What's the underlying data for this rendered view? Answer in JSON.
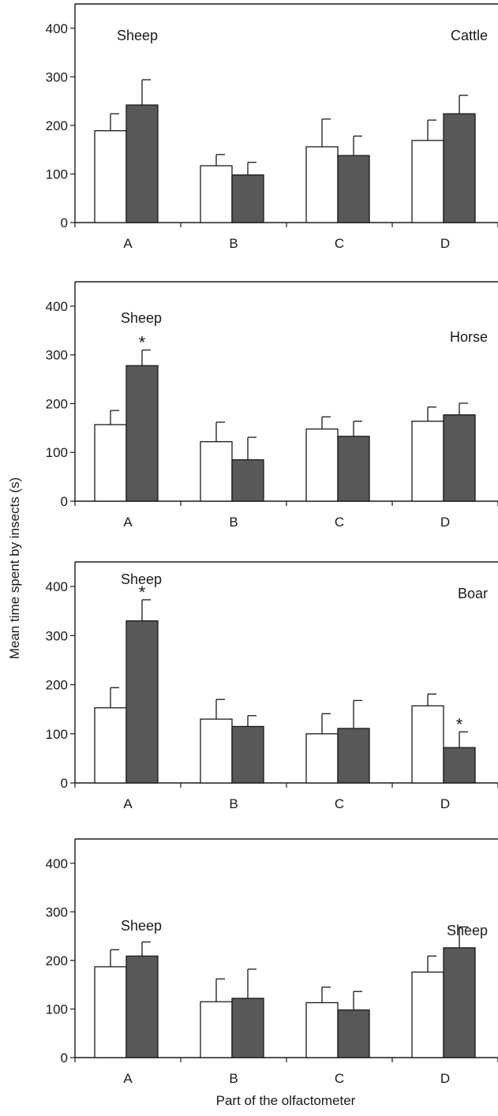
{
  "colors": {
    "control": "#ffffff",
    "treatment": "#58585a",
    "axis": "#1a1a1a"
  },
  "ylabel": "Mean time spent by insects (s)",
  "xlabel": "Part of the olfactometer",
  "chart_data": [
    {
      "type": "bar",
      "categories": [
        "A",
        "B",
        "C",
        "D"
      ],
      "ylim": [
        0,
        450
      ],
      "yticks": [
        0,
        100,
        200,
        300,
        400
      ],
      "left_label": "Sheep",
      "right_label": "Cattle",
      "series": [
        {
          "values": [
            189,
            117,
            156,
            169
          ],
          "errors": [
            35,
            23,
            57,
            42
          ],
          "stars": [
            "",
            "",
            "",
            ""
          ]
        },
        {
          "values": [
            242,
            98,
            138,
            224
          ],
          "errors": [
            52,
            26,
            40,
            38
          ],
          "stars": [
            "",
            "",
            "",
            ""
          ]
        }
      ]
    },
    {
      "type": "bar",
      "categories": [
        "A",
        "B",
        "C",
        "D"
      ],
      "ylim": [
        0,
        450
      ],
      "yticks": [
        0,
        100,
        200,
        300,
        400
      ],
      "left_label": "Sheep",
      "right_label": "Horse",
      "series": [
        {
          "values": [
            157,
            122,
            148,
            164
          ],
          "errors": [
            29,
            40,
            25,
            29
          ],
          "stars": [
            "",
            "",
            "",
            ""
          ]
        },
        {
          "values": [
            278,
            85,
            133,
            177
          ],
          "errors": [
            32,
            46,
            31,
            24
          ],
          "stars": [
            "*",
            "",
            "",
            ""
          ]
        }
      ]
    },
    {
      "type": "bar",
      "categories": [
        "A",
        "B",
        "C",
        "D"
      ],
      "ylim": [
        0,
        450
      ],
      "yticks": [
        0,
        100,
        200,
        300,
        400
      ],
      "left_label": "Sheep",
      "right_label": "Boar",
      "series": [
        {
          "values": [
            153,
            130,
            100,
            157
          ],
          "errors": [
            41,
            40,
            41,
            24
          ],
          "stars": [
            "",
            "",
            "",
            ""
          ]
        },
        {
          "values": [
            330,
            115,
            111,
            72
          ],
          "errors": [
            43,
            22,
            57,
            32
          ],
          "stars": [
            "*",
            "",
            "",
            "*"
          ]
        }
      ]
    },
    {
      "type": "bar",
      "categories": [
        "A",
        "B",
        "C",
        "D"
      ],
      "ylim": [
        0,
        450
      ],
      "yticks": [
        0,
        100,
        200,
        300,
        400
      ],
      "left_label": "Sheep",
      "right_label": "Sheep",
      "series": [
        {
          "values": [
            187,
            115,
            113,
            176
          ],
          "errors": [
            35,
            47,
            32,
            33
          ],
          "stars": [
            "",
            "",
            "",
            ""
          ]
        },
        {
          "values": [
            209,
            122,
            98,
            226
          ],
          "errors": [
            29,
            60,
            38,
            43
          ],
          "stars": [
            "",
            "",
            "",
            ""
          ]
        }
      ]
    }
  ]
}
